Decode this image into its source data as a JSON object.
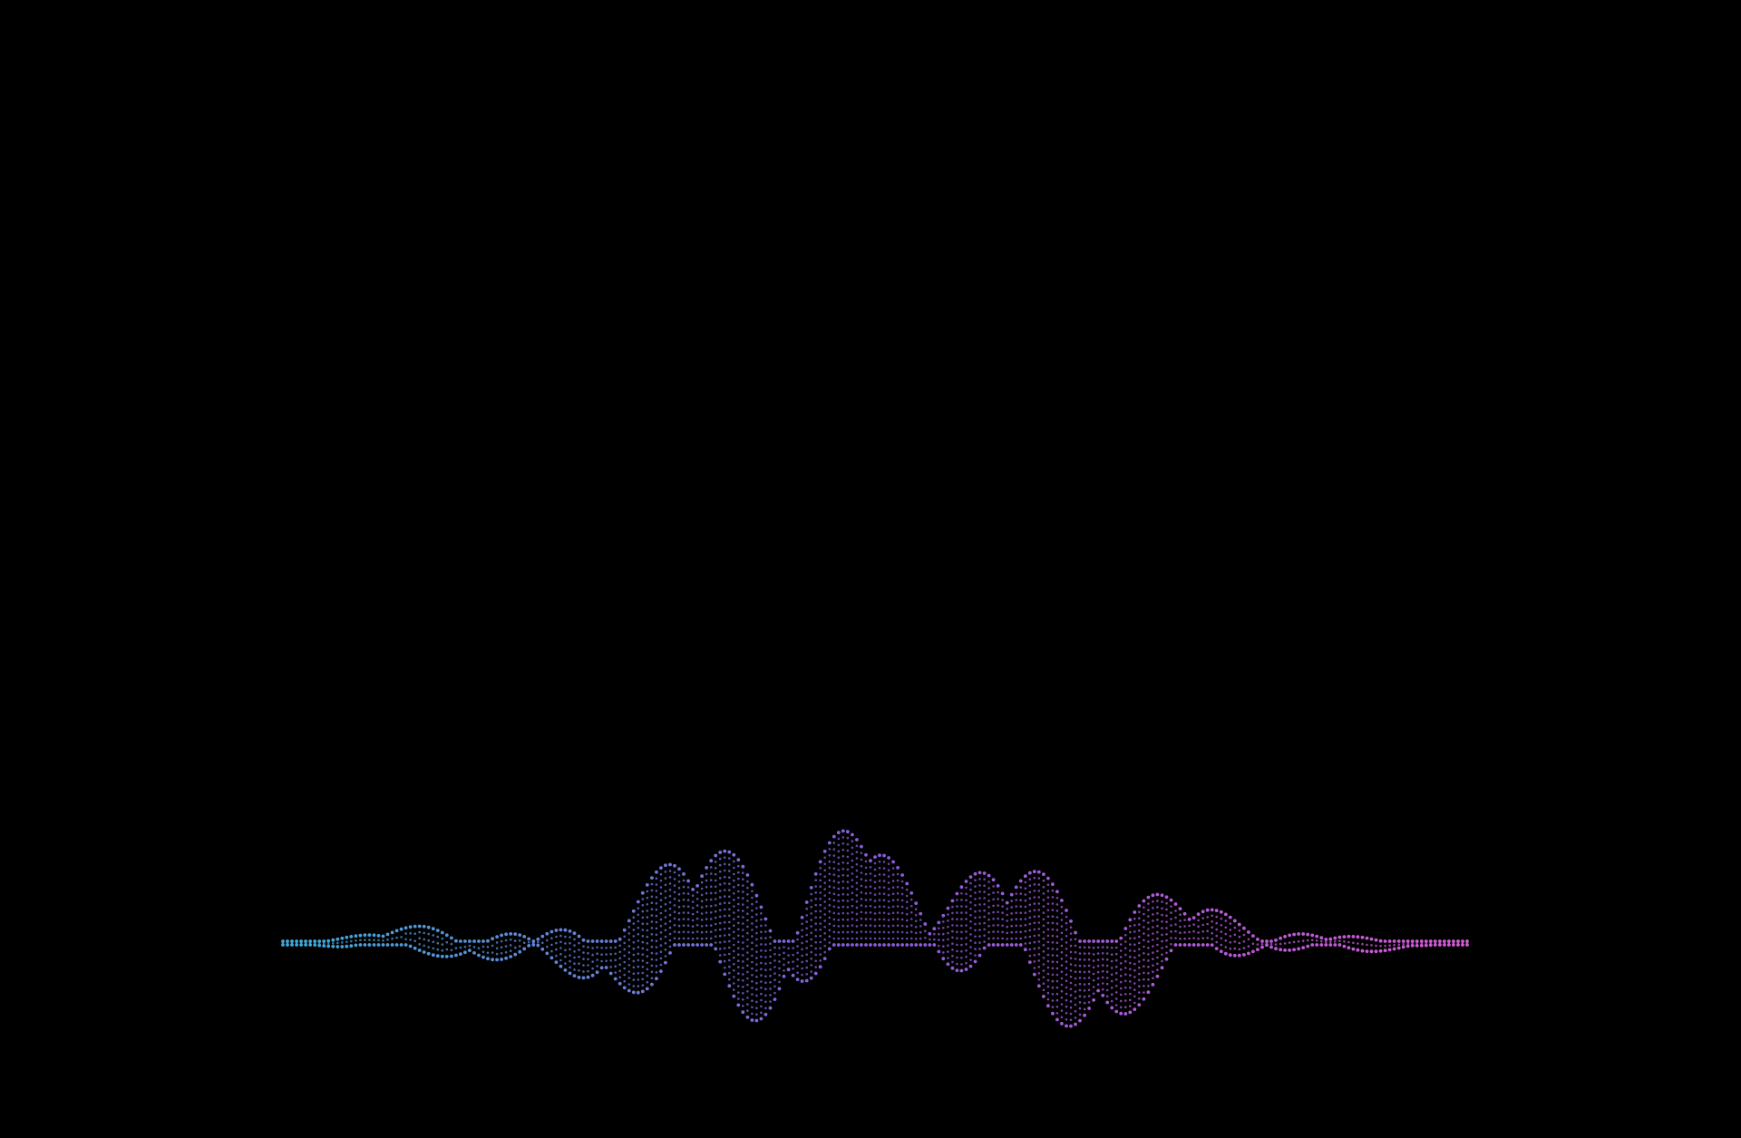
{
  "scene": {
    "background_color": "#000000",
    "subject": "dotted-sound-wave",
    "palette": {
      "left": "#3fa9d6",
      "middle": "#8a5bd8",
      "right": "#d35ad6"
    },
    "interactive": false
  }
}
